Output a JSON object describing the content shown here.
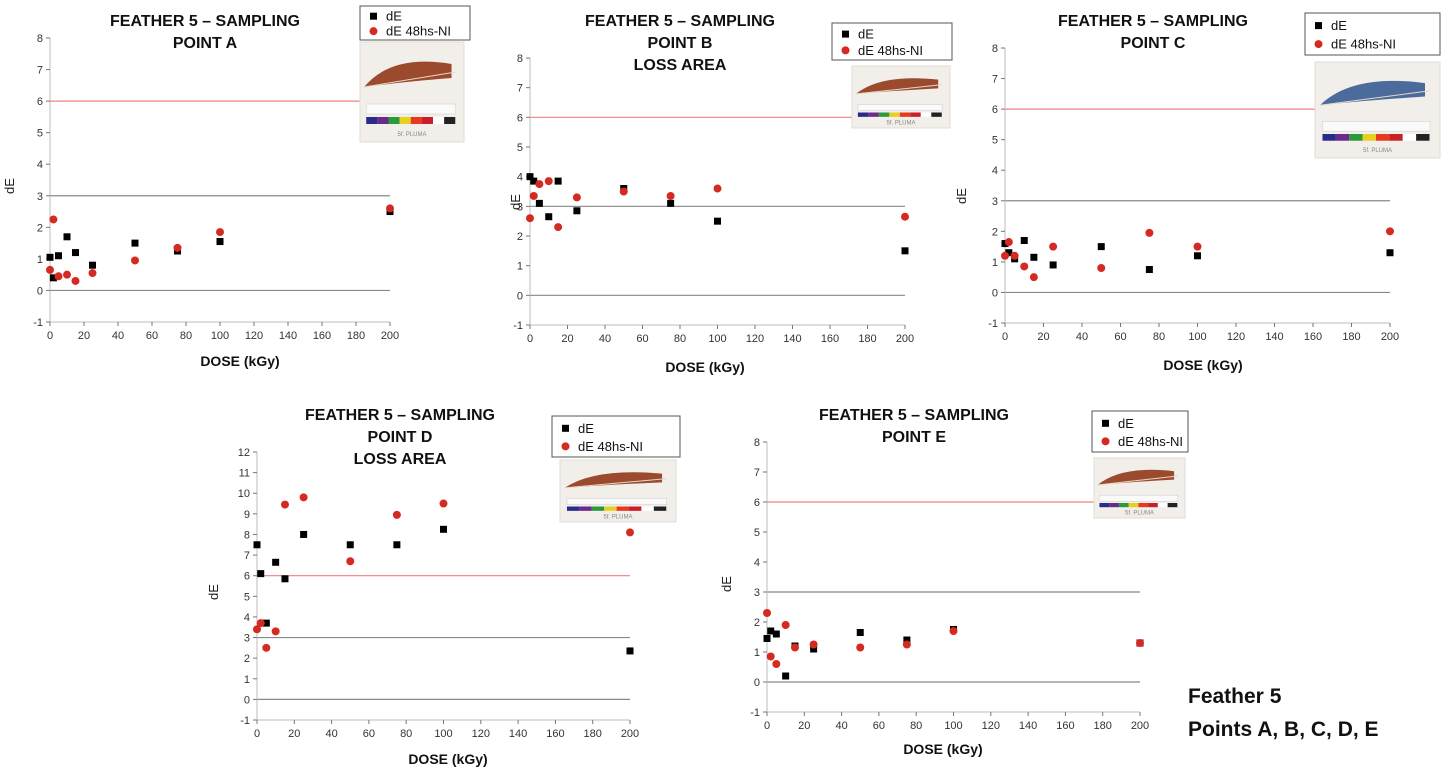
{
  "footnote": {
    "line1": "Feather 5",
    "line2": "Points A, B, C, D, E"
  },
  "legend_labels": {
    "de": "dE",
    "de48": "dE 48hs-NI"
  },
  "colors": {
    "de": "#000000",
    "de48": "#d42a22",
    "threshold_red": "#f08080",
    "threshold_grey": "#888888",
    "zero_line": "#888888"
  },
  "chart_data": [
    {
      "type": "scatter",
      "title": [
        "FEATHER 5 – SAMPLING",
        "POINT A"
      ],
      "xlabel": "DOSE (kGy)",
      "ylabel": "dE",
      "xlim": [
        0,
        200
      ],
      "ylim": [
        -1,
        8
      ],
      "xticks": [
        0,
        20,
        40,
        60,
        80,
        100,
        120,
        140,
        160,
        180,
        200
      ],
      "yticks": [
        -1,
        0,
        1,
        2,
        3,
        4,
        5,
        6,
        7,
        8
      ],
      "reference_lines": [
        {
          "y": 6,
          "color": "red"
        },
        {
          "y": 3,
          "color": "grey"
        },
        {
          "y": 0,
          "color": "grey"
        }
      ],
      "legend_position": "top-right",
      "photo_caption": "5f. PLUMA",
      "series": [
        {
          "name": "dE",
          "marker": "square",
          "points": [
            [
              0,
              1.05
            ],
            [
              2,
              0.4
            ],
            [
              5,
              1.1
            ],
            [
              10,
              1.7
            ],
            [
              15,
              1.2
            ],
            [
              25,
              0.8
            ],
            [
              50,
              1.5
            ],
            [
              75,
              1.25
            ],
            [
              100,
              1.55
            ],
            [
              200,
              2.5
            ]
          ]
        },
        {
          "name": "dE 48hs-NI",
          "marker": "circle",
          "points": [
            [
              0,
              0.65
            ],
            [
              2,
              2.25
            ],
            [
              5,
              0.45
            ],
            [
              10,
              0.5
            ],
            [
              15,
              0.3
            ],
            [
              25,
              0.55
            ],
            [
              50,
              0.95
            ],
            [
              75,
              1.35
            ],
            [
              100,
              1.85
            ],
            [
              200,
              2.6
            ]
          ]
        }
      ]
    },
    {
      "type": "scatter",
      "title": [
        "FEATHER 5 – SAMPLING",
        "POINT B",
        "LOSS AREA"
      ],
      "xlabel": "DOSE (kGy)",
      "ylabel": "dE",
      "xlim": [
        0,
        200
      ],
      "ylim": [
        -1,
        8
      ],
      "xticks": [
        0,
        20,
        40,
        60,
        80,
        100,
        120,
        140,
        160,
        180,
        200
      ],
      "yticks": [
        -1,
        0,
        1,
        2,
        3,
        4,
        5,
        6,
        7,
        8
      ],
      "reference_lines": [
        {
          "y": 6,
          "color": "red"
        },
        {
          "y": 3,
          "color": "grey"
        },
        {
          "y": 0,
          "color": "grey"
        }
      ],
      "legend_position": "top-right",
      "photo_caption": "5f. PLUMA",
      "series": [
        {
          "name": "dE",
          "marker": "square",
          "points": [
            [
              0,
              4.0
            ],
            [
              2,
              3.85
            ],
            [
              5,
              3.1
            ],
            [
              10,
              2.65
            ],
            [
              15,
              3.85
            ],
            [
              25,
              2.85
            ],
            [
              50,
              3.6
            ],
            [
              75,
              3.1
            ],
            [
              100,
              2.5
            ],
            [
              200,
              1.5
            ]
          ]
        },
        {
          "name": "dE 48hs-NI",
          "marker": "circle",
          "points": [
            [
              0,
              2.6
            ],
            [
              2,
              3.35
            ],
            [
              5,
              3.75
            ],
            [
              10,
              3.85
            ],
            [
              15,
              2.3
            ],
            [
              25,
              3.3
            ],
            [
              50,
              3.5
            ],
            [
              75,
              3.35
            ],
            [
              100,
              3.6
            ],
            [
              200,
              2.65
            ]
          ]
        }
      ]
    },
    {
      "type": "scatter",
      "title": [
        "FEATHER 5 – SAMPLING",
        "POINT C"
      ],
      "xlabel": "DOSE (kGy)",
      "ylabel": "dE",
      "xlim": [
        0,
        200
      ],
      "ylim": [
        -1,
        8
      ],
      "xticks": [
        0,
        20,
        40,
        60,
        80,
        100,
        120,
        140,
        160,
        180,
        200
      ],
      "yticks": [
        -1,
        0,
        1,
        2,
        3,
        4,
        5,
        6,
        7,
        8
      ],
      "reference_lines": [
        {
          "y": 6,
          "color": "red"
        },
        {
          "y": 3,
          "color": "grey"
        },
        {
          "y": 0,
          "color": "grey"
        }
      ],
      "legend_position": "top-right",
      "photo_caption": "5f. PLUMA",
      "series": [
        {
          "name": "dE",
          "marker": "square",
          "points": [
            [
              0,
              1.6
            ],
            [
              2,
              1.3
            ],
            [
              5,
              1.1
            ],
            [
              10,
              1.7
            ],
            [
              15,
              1.15
            ],
            [
              25,
              0.9
            ],
            [
              50,
              1.5
            ],
            [
              75,
              0.75
            ],
            [
              100,
              1.2
            ],
            [
              200,
              1.3
            ]
          ]
        },
        {
          "name": "dE 48hs-NI",
          "marker": "circle",
          "points": [
            [
              0,
              1.2
            ],
            [
              2,
              1.65
            ],
            [
              5,
              1.2
            ],
            [
              10,
              0.85
            ],
            [
              15,
              0.5
            ],
            [
              25,
              1.5
            ],
            [
              50,
              0.8
            ],
            [
              75,
              1.95
            ],
            [
              100,
              1.5
            ],
            [
              200,
              2.0
            ]
          ]
        }
      ]
    },
    {
      "type": "scatter",
      "title": [
        "FEATHER 5 – SAMPLING",
        "POINT D",
        "LOSS AREA"
      ],
      "xlabel": "DOSE (kGy)",
      "ylabel": "dE",
      "xlim": [
        0,
        200
      ],
      "ylim": [
        -1,
        12
      ],
      "xticks": [
        0,
        20,
        40,
        60,
        80,
        100,
        120,
        140,
        160,
        180,
        200
      ],
      "yticks": [
        -1,
        0,
        1,
        2,
        3,
        4,
        5,
        6,
        7,
        8,
        9,
        10,
        11,
        12
      ],
      "reference_lines": [
        {
          "y": 6,
          "color": "red"
        },
        {
          "y": 3,
          "color": "grey"
        },
        {
          "y": 0,
          "color": "grey"
        }
      ],
      "legend_position": "top-right",
      "photo_caption": "5f. PLUMA",
      "series": [
        {
          "name": "dE",
          "marker": "square",
          "points": [
            [
              0,
              7.5
            ],
            [
              2,
              6.1
            ],
            [
              5,
              3.7
            ],
            [
              10,
              6.65
            ],
            [
              15,
              5.85
            ],
            [
              25,
              8.0
            ],
            [
              50,
              7.5
            ],
            [
              75,
              7.5
            ],
            [
              100,
              8.25
            ],
            [
              200,
              2.35
            ]
          ]
        },
        {
          "name": "dE 48hs-NI",
          "marker": "circle",
          "points": [
            [
              0,
              3.4
            ],
            [
              2,
              3.7
            ],
            [
              5,
              2.5
            ],
            [
              10,
              3.3
            ],
            [
              15,
              9.45
            ],
            [
              25,
              9.8
            ],
            [
              50,
              6.7
            ],
            [
              75,
              8.95
            ],
            [
              100,
              9.5
            ],
            [
              200,
              8.1
            ]
          ]
        }
      ]
    },
    {
      "type": "scatter",
      "title": [
        "FEATHER 5 – SAMPLING",
        "POINT E"
      ],
      "xlabel": "DOSE (kGy)",
      "ylabel": "dE",
      "xlim": [
        0,
        200
      ],
      "ylim": [
        -1,
        8
      ],
      "xticks": [
        0,
        20,
        40,
        60,
        80,
        100,
        120,
        140,
        160,
        180,
        200
      ],
      "yticks": [
        -1,
        0,
        1,
        2,
        3,
        4,
        5,
        6,
        7,
        8
      ],
      "reference_lines": [
        {
          "y": 6,
          "color": "red"
        },
        {
          "y": 3,
          "color": "grey"
        },
        {
          "y": 0,
          "color": "grey"
        }
      ],
      "legend_position": "top-right",
      "photo_caption": "5f. PLUMA",
      "series": [
        {
          "name": "dE",
          "marker": "square",
          "points": [
            [
              0,
              1.45
            ],
            [
              2,
              1.7
            ],
            [
              5,
              1.6
            ],
            [
              10,
              0.2
            ],
            [
              15,
              1.2
            ],
            [
              25,
              1.1
            ],
            [
              50,
              1.65
            ],
            [
              75,
              1.4
            ],
            [
              100,
              1.75
            ],
            [
              200,
              1.3
            ]
          ]
        },
        {
          "name": "dE 48hs-NI",
          "marker": "circle",
          "points": [
            [
              0,
              2.3
            ],
            [
              2,
              0.85
            ],
            [
              5,
              0.6
            ],
            [
              10,
              1.9
            ],
            [
              15,
              1.15
            ],
            [
              25,
              1.25
            ],
            [
              50,
              1.15
            ],
            [
              75,
              1.25
            ],
            [
              100,
              1.7
            ],
            [
              200,
              1.3
            ]
          ]
        }
      ]
    }
  ]
}
